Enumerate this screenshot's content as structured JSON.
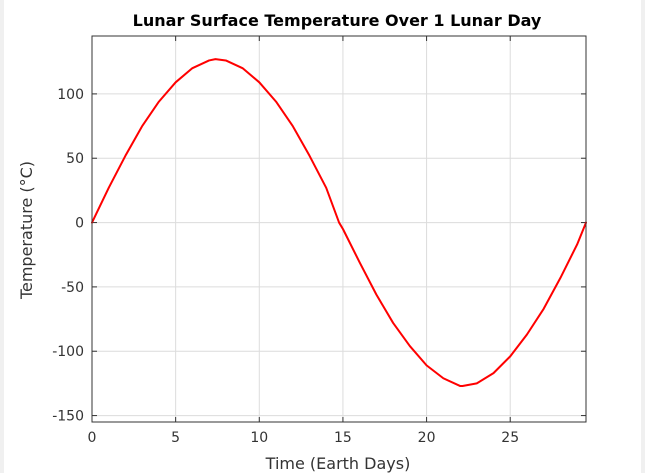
{
  "chart_data": {
    "type": "line",
    "title": "Lunar Surface Temperature Over 1 Lunar Day",
    "xlabel": "Time (Earth Days)",
    "ylabel": "Temperature (°C)",
    "xlim": [
      0,
      29.53
    ],
    "ylim": [
      -155,
      145
    ],
    "xticks": [
      0,
      5,
      10,
      15,
      20,
      25
    ],
    "yticks": [
      100,
      50,
      0,
      -50,
      -100,
      -150
    ],
    "grid": true,
    "legend": "none",
    "series": [
      {
        "color": "#ff0000",
        "x": [
          0,
          1,
          2,
          3,
          4,
          5,
          6,
          7,
          7.38,
          8,
          9,
          10,
          11,
          12,
          13,
          14,
          14.77,
          15,
          16,
          17,
          18,
          19,
          20,
          21,
          22,
          22.15,
          23,
          24,
          25,
          26,
          27,
          28,
          29,
          29.53
        ],
        "y": [
          0,
          27,
          52,
          75,
          94,
          109,
          120,
          126,
          127,
          126,
          120,
          109,
          94,
          75,
          52,
          27,
          0,
          -5,
          -31,
          -56,
          -78,
          -96,
          -111,
          -121,
          -127,
          -127,
          -125,
          -117,
          -104,
          -87,
          -67,
          -43,
          -17,
          0
        ]
      }
    ]
  }
}
